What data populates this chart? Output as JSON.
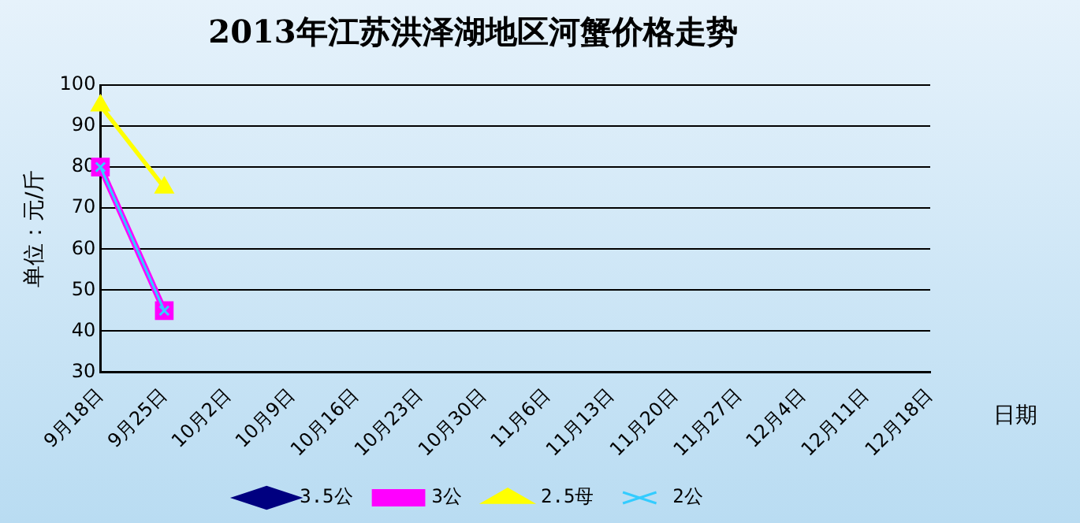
{
  "chart_data": {
    "type": "line",
    "title": "2013年江苏洪泽湖地区河蟹价格走势",
    "ylabel": "单位：元/斤",
    "xlabel": "日期",
    "categories": [
      "9月18日",
      "9月25日",
      "10月2日",
      "10月9日",
      "10月16日",
      "10月23日",
      "10月30日",
      "11月6日",
      "11月13日",
      "11月20日",
      "11月27日",
      "12月4日",
      "12月11日",
      "12月18日"
    ],
    "series": [
      {
        "name": "3.5公",
        "color": "#000080",
        "marker": "diamond",
        "values": [
          null,
          null,
          null,
          null,
          null,
          null,
          null,
          null,
          null,
          null,
          null,
          null,
          null,
          null
        ]
      },
      {
        "name": "3公",
        "color": "#ff00ff",
        "marker": "square",
        "values": [
          80,
          45,
          null,
          null,
          null,
          null,
          null,
          null,
          null,
          null,
          null,
          null,
          null,
          null
        ]
      },
      {
        "name": "2.5母",
        "color": "#ffff00",
        "marker": "triangle",
        "values": [
          95,
          75,
          null,
          null,
          null,
          null,
          null,
          null,
          null,
          null,
          null,
          null,
          null,
          null
        ]
      },
      {
        "name": "2公",
        "color": "#33ccff",
        "marker": "cross",
        "values": [
          80,
          45,
          null,
          null,
          null,
          null,
          null,
          null,
          null,
          null,
          null,
          null,
          null,
          null
        ]
      }
    ],
    "ylim": [
      30,
      100
    ],
    "yticks": [
      30,
      40,
      50,
      60,
      70,
      80,
      90,
      100
    ],
    "grid": "y",
    "legend": "bottom",
    "line_style": "solid"
  }
}
